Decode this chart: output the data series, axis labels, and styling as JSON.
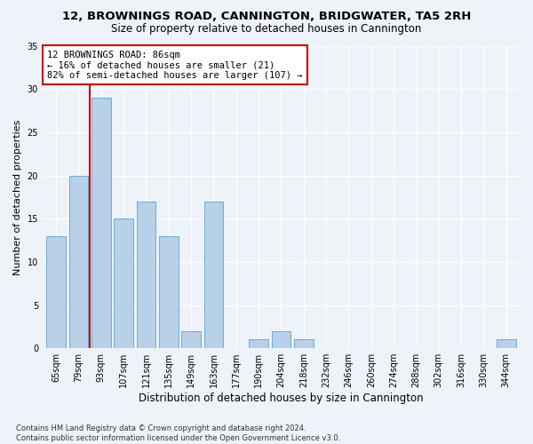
{
  "title_line1": "12, BROWNINGS ROAD, CANNINGTON, BRIDGWATER, TA5 2RH",
  "title_line2": "Size of property relative to detached houses in Cannington",
  "xlabel": "Distribution of detached houses by size in Cannington",
  "ylabel": "Number of detached properties",
  "categories": [
    "65sqm",
    "79sqm",
    "93sqm",
    "107sqm",
    "121sqm",
    "135sqm",
    "149sqm",
    "163sqm",
    "177sqm",
    "190sqm",
    "204sqm",
    "218sqm",
    "232sqm",
    "246sqm",
    "260sqm",
    "274sqm",
    "288sqm",
    "302sqm",
    "316sqm",
    "330sqm",
    "344sqm"
  ],
  "values": [
    13,
    20,
    29,
    15,
    17,
    13,
    2,
    17,
    0,
    1,
    2,
    1,
    0,
    0,
    0,
    0,
    0,
    0,
    0,
    0,
    1
  ],
  "bar_color": "#b8d0e8",
  "bar_edge_color": "#6aaed6",
  "bar_width": 0.85,
  "ylim": [
    0,
    35
  ],
  "yticks": [
    0,
    5,
    10,
    15,
    20,
    25,
    30,
    35
  ],
  "property_line_color": "#cc0000",
  "annotation_box_text": "12 BROWNINGS ROAD: 86sqm\n← 16% of detached houses are smaller (21)\n82% of semi-detached houses are larger (107) →",
  "annotation_box_color": "#cc0000",
  "bg_color": "#eef2f9",
  "grid_color": "#ffffff",
  "footnote": "Contains HM Land Registry data © Crown copyright and database right 2024.\nContains public sector information licensed under the Open Government Licence v3.0."
}
